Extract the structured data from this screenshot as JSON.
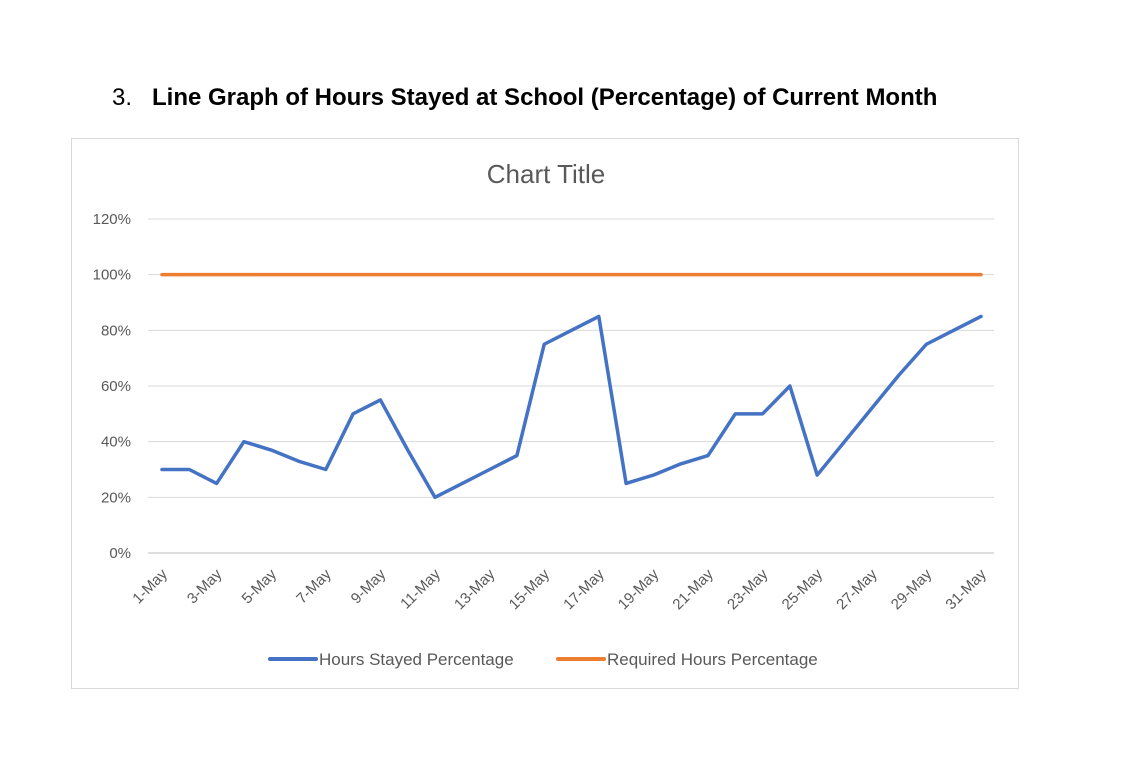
{
  "heading": {
    "number": "3.",
    "text": "Line Graph of Hours Stayed at School (Percentage) of Current Month"
  },
  "chart_data": {
    "type": "line",
    "title": "Chart Title",
    "xlabel": "",
    "ylabel": "",
    "ylim": [
      0,
      120
    ],
    "yticks": [
      "0%",
      "20%",
      "40%",
      "60%",
      "80%",
      "100%",
      "120%"
    ],
    "grid": true,
    "legend_position": "bottom",
    "x": [
      "1-May",
      "2-May",
      "3-May",
      "4-May",
      "5-May",
      "6-May",
      "7-May",
      "8-May",
      "9-May",
      "10-May",
      "11-May",
      "12-May",
      "13-May",
      "14-May",
      "15-May",
      "16-May",
      "17-May",
      "18-May",
      "19-May",
      "20-May",
      "21-May",
      "22-May",
      "23-May",
      "24-May",
      "25-May",
      "26-May",
      "27-May",
      "28-May",
      "29-May",
      "30-May",
      "31-May"
    ],
    "xtick_labels": [
      "1-May",
      "3-May",
      "5-May",
      "7-May",
      "9-May",
      "11-May",
      "13-May",
      "15-May",
      "17-May",
      "19-May",
      "21-May",
      "23-May",
      "25-May",
      "27-May",
      "29-May",
      "31-May"
    ],
    "series": [
      {
        "name": "Hours Stayed Percentage",
        "color": "#4472c4",
        "values": [
          30,
          30,
          25,
          40,
          37,
          33,
          30,
          50,
          55,
          37,
          20,
          25,
          30,
          35,
          75,
          80,
          85,
          25,
          28,
          32,
          35,
          50,
          50,
          60,
          28,
          40,
          52,
          64,
          75,
          80,
          85
        ]
      },
      {
        "name": "Required Hours Percentage",
        "color": "#ed7d31",
        "values": [
          100,
          100,
          100,
          100,
          100,
          100,
          100,
          100,
          100,
          100,
          100,
          100,
          100,
          100,
          100,
          100,
          100,
          100,
          100,
          100,
          100,
          100,
          100,
          100,
          100,
          100,
          100,
          100,
          100,
          100,
          100
        ]
      }
    ]
  }
}
